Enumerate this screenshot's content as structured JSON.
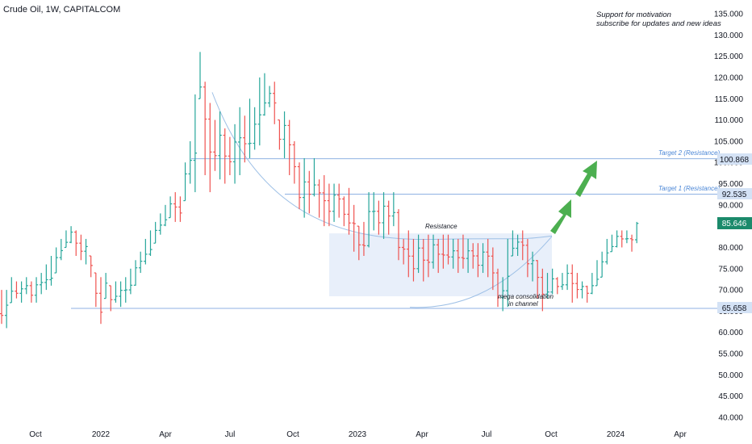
{
  "title": "Crude Oil, 1W, CAPITALCOM",
  "promo": {
    "line1": "Support for motivation",
    "line2": "subscribe for updates and new ideas"
  },
  "annotations": {
    "resistance": "Resistance",
    "consolidation_1": "mega consolidation",
    "consolidation_2": "in channel"
  },
  "levels": {
    "target2": {
      "label": "Target 2 (Resistance)",
      "tag": "100.868",
      "value": 100.868
    },
    "target1": {
      "label": "Target 1 (Resistance)",
      "tag": "92.535",
      "value": 92.535
    },
    "last": {
      "tag": "85.646",
      "value": 85.646
    },
    "support": {
      "tag": "65.658",
      "value": 65.658
    }
  },
  "colors": {
    "up": "#26a69a",
    "down": "#ef5350",
    "level": "#8fb2e3",
    "box": "#dbe6f7",
    "arrow": "#4caf50",
    "last_tag": "#1b8a6b"
  },
  "chart_data": {
    "type": "candlestick",
    "title": "Crude Oil, 1W, CAPITALCOM",
    "ylim": [
      40,
      135
    ],
    "y_ticks": [
      "135.000",
      "130.000",
      "125.000",
      "120.000",
      "115.000",
      "110.000",
      "105.000",
      "100.000",
      "95.000",
      "90.000",
      "85.000",
      "80.000",
      "75.000",
      "70.000",
      "65.000",
      "60.000",
      "55.000",
      "50.000",
      "45.000",
      "40.000"
    ],
    "x_ticks": [
      "Oct",
      "2022",
      "Apr",
      "Jul",
      "Oct",
      "2023",
      "Apr",
      "Jul",
      "Oct",
      "2024",
      "Apr"
    ],
    "series": [
      {
        "name": "Crude Oil",
        "points": [
          [
            62,
            70
          ],
          [
            61,
            70
          ],
          [
            67,
            73
          ],
          [
            68,
            72
          ],
          [
            67,
            72
          ],
          [
            69,
            73
          ],
          [
            67,
            72
          ],
          [
            67,
            73
          ],
          [
            69,
            74
          ],
          [
            70,
            76
          ],
          [
            71,
            78
          ],
          [
            74,
            80
          ],
          [
            77,
            82
          ],
          [
            80,
            84
          ],
          [
            81,
            85
          ],
          [
            78,
            84
          ],
          [
            77,
            83
          ],
          [
            76,
            82
          ],
          [
            73,
            78
          ],
          [
            66,
            74
          ],
          [
            62,
            73
          ],
          [
            68,
            74
          ],
          [
            65,
            71
          ],
          [
            67,
            72
          ],
          [
            66,
            72
          ],
          [
            67,
            73
          ],
          [
            69,
            75
          ],
          [
            71,
            77
          ],
          [
            74,
            79
          ],
          [
            76,
            82
          ],
          [
            78,
            84
          ],
          [
            81,
            86
          ],
          [
            83,
            88
          ],
          [
            85,
            90
          ],
          [
            87,
            92
          ],
          [
            86,
            93
          ],
          [
            86,
            92
          ],
          [
            91,
            100
          ],
          [
            95,
            105
          ],
          [
            93,
            116
          ],
          [
            115,
            126
          ],
          [
            97,
            119
          ],
          [
            93,
            114
          ],
          [
            98,
            110
          ],
          [
            96,
            112
          ],
          [
            95,
            108
          ],
          [
            97,
            106
          ],
          [
            95,
            109
          ],
          [
            97,
            113
          ],
          [
            100,
            111
          ],
          [
            101,
            115
          ],
          [
            103,
            113
          ],
          [
            104,
            120
          ],
          [
            111,
            121
          ],
          [
            113,
            118
          ],
          [
            109,
            119
          ],
          [
            103,
            110
          ],
          [
            101,
            112
          ],
          [
            97,
            110
          ],
          [
            95,
            105
          ],
          [
            89,
            100
          ],
          [
            87,
            101
          ],
          [
            88,
            98
          ],
          [
            92,
            101
          ],
          [
            87,
            96
          ],
          [
            85,
            97
          ],
          [
            85,
            95
          ],
          [
            86,
            95
          ],
          [
            87,
            95
          ],
          [
            85,
            92
          ],
          [
            83,
            94
          ],
          [
            79,
            90
          ],
          [
            77,
            85
          ],
          [
            78,
            86
          ],
          [
            80,
            93
          ],
          [
            84,
            93
          ],
          [
            83,
            91
          ],
          [
            82,
            93
          ],
          [
            83,
            91
          ],
          [
            85,
            93
          ],
          [
            77,
            89
          ],
          [
            76,
            82
          ],
          [
            73,
            84
          ],
          [
            72,
            82
          ],
          [
            74,
            83
          ],
          [
            72,
            82
          ],
          [
            73,
            83
          ],
          [
            75,
            83
          ],
          [
            74,
            82
          ],
          [
            75,
            83
          ],
          [
            76,
            83
          ],
          [
            75,
            82
          ],
          [
            74,
            82
          ],
          [
            75,
            83
          ],
          [
            74,
            82
          ],
          [
            75,
            81
          ],
          [
            73,
            81
          ],
          [
            74,
            81
          ],
          [
            73,
            82
          ],
          [
            70,
            80
          ],
          [
            66,
            75
          ],
          [
            65,
            73
          ],
          [
            66,
            82
          ],
          [
            78,
            84
          ],
          [
            78,
            83
          ],
          [
            77,
            84
          ],
          [
            73,
            82
          ],
          [
            72,
            79
          ],
          [
            68,
            77
          ],
          [
            65,
            75
          ],
          [
            68,
            74
          ],
          [
            69,
            75
          ],
          [
            69,
            73
          ],
          [
            70,
            74
          ],
          [
            70,
            76
          ],
          [
            67,
            76
          ],
          [
            68,
            74
          ],
          [
            68,
            72
          ],
          [
            67,
            71
          ],
          [
            69,
            74
          ],
          [
            71,
            77
          ],
          [
            73,
            79
          ],
          [
            76,
            82
          ],
          [
            79,
            83
          ],
          [
            80,
            84
          ],
          [
            80,
            84
          ],
          [
            81,
            84
          ],
          [
            79,
            83
          ],
          [
            81,
            86
          ]
        ]
      }
    ],
    "levels": [
      100.868,
      92.535,
      65.658
    ],
    "last_price": 85.646
  }
}
